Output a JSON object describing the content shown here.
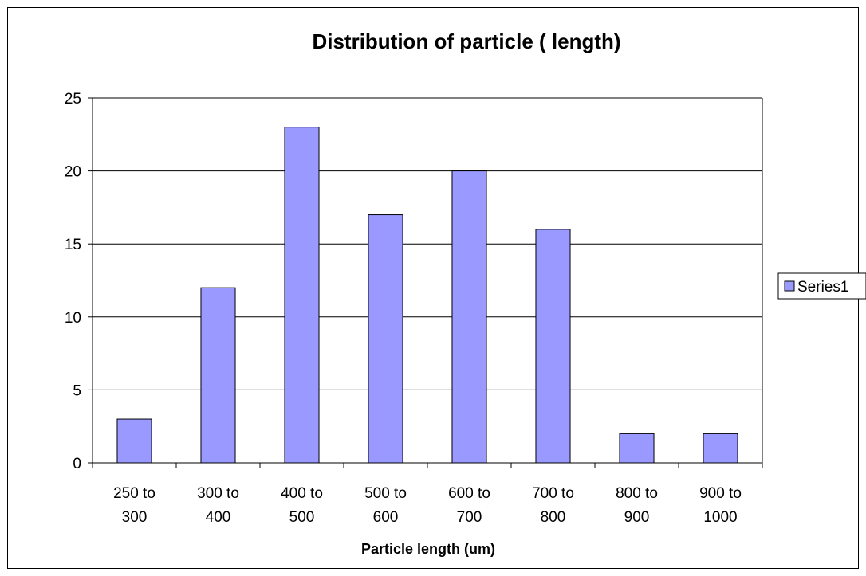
{
  "chart_data": {
    "type": "bar",
    "title": "Distribution of particle ( length)",
    "xlabel": "Particle length (um)",
    "ylabel": "",
    "categories": [
      [
        "250 to",
        "300"
      ],
      [
        "300 to",
        "400"
      ],
      [
        "400 to",
        "500"
      ],
      [
        "500 to",
        "600"
      ],
      [
        "600 to",
        "700"
      ],
      [
        "700 to",
        "800"
      ],
      [
        "800 to",
        "900"
      ],
      [
        "900 to",
        "1000"
      ]
    ],
    "series": [
      {
        "name": "Series1",
        "values": [
          3,
          12,
          23,
          17,
          20,
          16,
          2,
          2
        ]
      }
    ],
    "ylim": [
      0,
      25
    ],
    "yticks": [
      0,
      5,
      10,
      15,
      20,
      25
    ],
    "grid": true,
    "legend": "right",
    "colors": {
      "bar_fill": "#9999ff",
      "bar_stroke": "#000000",
      "grid": "#000000"
    }
  }
}
